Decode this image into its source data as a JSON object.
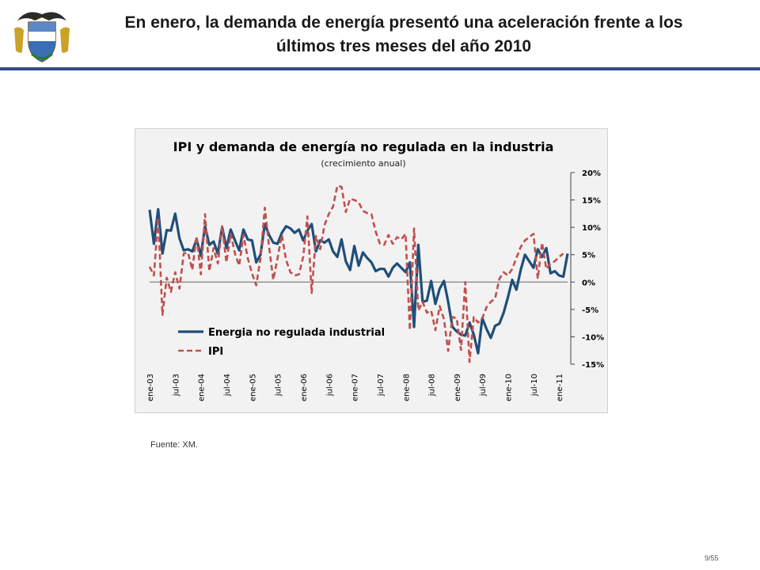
{
  "slide": {
    "title_line1": "En enero, la demanda de energía presentó una aceleración frente a los",
    "title_line2": "últimos tres meses del año 2010",
    "source": "Fuente: XM.",
    "page": "9/55",
    "rule_color": "#2f4c8a"
  },
  "chart_data": {
    "type": "line",
    "title": "IPI y demanda de energía no regulada en la industria",
    "subtitle": "(crecimiento anual)",
    "ylabel": "",
    "xlabel": "",
    "ylim": [
      -15,
      20
    ],
    "yticks": [
      20,
      15,
      10,
      5,
      0,
      -5,
      -10,
      -15
    ],
    "ytick_labels": [
      "20%",
      "15%",
      "10%",
      "5%",
      "0%",
      "-5%",
      "-10%",
      "-15%"
    ],
    "xtick_labels": [
      "ene-03",
      "jul-03",
      "ene-04",
      "jul-04",
      "ene-05",
      "jul-05",
      "ene-06",
      "jul-06",
      "ene-07",
      "jul-07",
      "ene-08",
      "jul-08",
      "ene-09",
      "jul-09",
      "ene-10",
      "jul-10",
      "ene-11"
    ],
    "xtick_index": [
      0,
      6,
      12,
      18,
      24,
      30,
      36,
      42,
      48,
      54,
      60,
      66,
      72,
      78,
      84,
      90,
      96
    ],
    "legend": "bottom-left",
    "series": [
      {
        "name": "Energia no regulada industrial",
        "color": "#1f4e79",
        "style": "solid",
        "values": [
          13.2,
          7.0,
          13.3,
          5.2,
          9.5,
          9.4,
          12.5,
          8.0,
          5.8,
          6.0,
          5.6,
          7.8,
          4.8,
          10.2,
          6.8,
          7.4,
          5.2,
          10.0,
          6.2,
          9.6,
          7.6,
          5.8,
          9.6,
          7.8,
          7.6,
          3.6,
          5.0,
          10.6,
          8.6,
          7.2,
          7.0,
          9.0,
          10.2,
          9.8,
          9.0,
          9.6,
          7.6,
          9.4,
          10.6,
          5.6,
          7.6,
          7.2,
          7.8,
          5.6,
          4.6,
          7.8,
          3.8,
          2.2,
          6.6,
          3.0,
          5.4,
          4.4,
          3.6,
          2.0,
          2.4,
          2.4,
          1.0,
          2.6,
          3.4,
          2.6,
          1.8,
          3.6,
          -8.2,
          6.8,
          -3.6,
          -3.4,
          0.2,
          -4.0,
          -1.2,
          0.2,
          -3.6,
          -8.2,
          -9.0,
          -9.6,
          -9.8,
          -7.4,
          -9.6,
          -13.0,
          -6.6,
          -8.6,
          -10.2,
          -8.0,
          -7.6,
          -5.6,
          -2.8,
          0.4,
          -1.4,
          2.2,
          5.0,
          3.8,
          2.6,
          6.0,
          4.6,
          6.2,
          1.6,
          2.0,
          1.2,
          1.0,
          5.2
        ]
      },
      {
        "name": "IPI",
        "color": "#c0504d",
        "style": "dashed",
        "values": [
          2.8,
          1.2,
          11.8,
          -6.0,
          0.8,
          -1.8,
          1.8,
          -1.2,
          5.2,
          5.4,
          2.2,
          8.4,
          1.4,
          12.4,
          2.0,
          6.2,
          3.4,
          10.2,
          3.6,
          8.8,
          5.2,
          3.0,
          8.6,
          4.4,
          1.6,
          -0.6,
          4.4,
          13.6,
          6.4,
          0.4,
          4.4,
          8.6,
          4.0,
          1.8,
          1.2,
          1.4,
          4.6,
          12.0,
          -2.0,
          8.4,
          6.0,
          10.4,
          12.4,
          13.8,
          17.6,
          17.4,
          12.8,
          15.2,
          15.0,
          14.6,
          13.0,
          12.6,
          12.4,
          9.2,
          7.0,
          6.8,
          8.6,
          7.0,
          8.2,
          7.8,
          8.8,
          -8.8,
          9.8,
          -5.2,
          -3.6,
          -5.6,
          -5.2,
          -8.8,
          -4.4,
          -6.8,
          -12.6,
          -6.4,
          -6.6,
          -12.4,
          0.0,
          -14.6,
          -6.4,
          -7.4,
          -6.6,
          -4.6,
          -3.6,
          -3.0,
          0.6,
          1.8,
          1.2,
          2.4,
          4.4,
          6.4,
          7.6,
          8.2,
          8.8,
          0.6,
          7.2,
          2.4,
          3.4,
          3.8,
          4.6,
          5.2
        ]
      }
    ]
  }
}
